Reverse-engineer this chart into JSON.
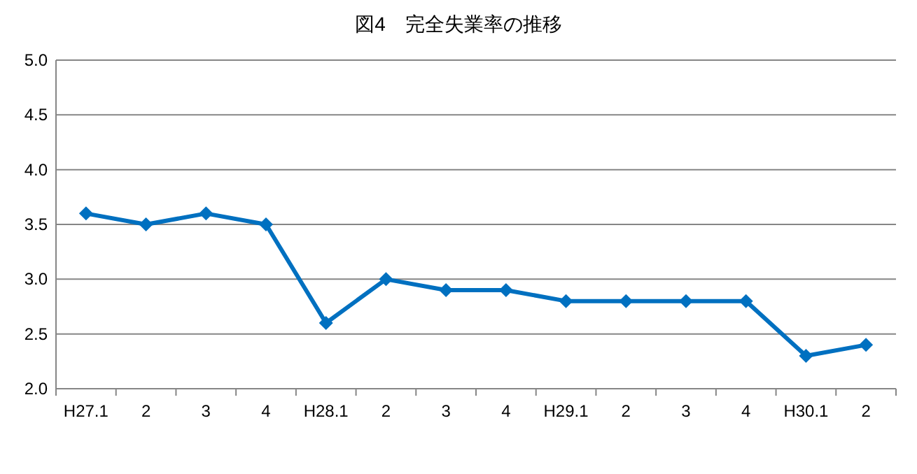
{
  "chart_data": {
    "type": "line",
    "title": "図4　完全失業率の推移",
    "categories": [
      "H27.1",
      "2",
      "3",
      "4",
      "H28.1",
      "2",
      "3",
      "4",
      "H29.1",
      "2",
      "3",
      "4",
      "H30.1",
      "2"
    ],
    "series": [
      {
        "color": "#0070c0",
        "values": [
          3.6,
          3.5,
          3.6,
          3.5,
          2.6,
          3.0,
          2.9,
          2.9,
          2.8,
          2.8,
          2.8,
          2.8,
          2.3,
          2.4
        ]
      }
    ],
    "ylim": [
      2.0,
      5.0
    ],
    "yticks": [
      {
        "value": 2,
        "label": "2.0"
      },
      2.5,
      {
        "value": 3,
        "label": "3.0"
      },
      3.5,
      {
        "value": 4,
        "label": "4.0"
      },
      4.5,
      {
        "value": 5,
        "label": "5.0"
      }
    ],
    "grid": "y",
    "marker": "diamond",
    "line_style": "solid"
  }
}
